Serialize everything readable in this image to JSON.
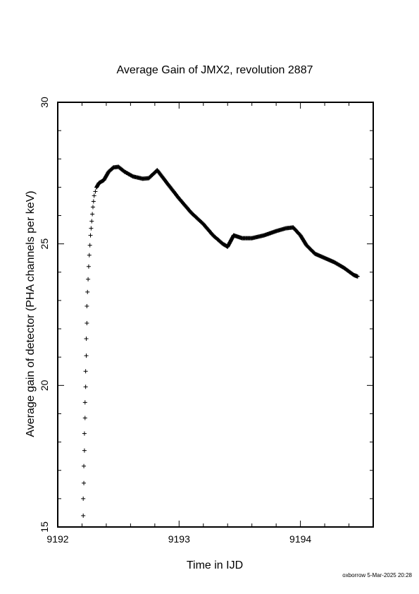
{
  "chart_data": {
    "type": "scatter",
    "title": "Average Gain of JMX2, revolution 2887",
    "xlabel": "Time in IJD",
    "ylabel": "Average gain of detector (PHA channels per keV)",
    "xlim": [
      9192,
      9194.6
    ],
    "ylim": [
      15,
      30
    ],
    "x_ticks": [
      9192,
      9193,
      9194
    ],
    "x_tick_labels": [
      "9192",
      "9193",
      "9194"
    ],
    "y_ticks": [
      15,
      20,
      25,
      30
    ],
    "y_tick_labels": [
      "15",
      "20",
      "25",
      "30"
    ],
    "grid": false,
    "marker": "+",
    "series": [
      {
        "points": [
          [
            9192.21,
            15.4
          ],
          [
            9192.21,
            16.0
          ],
          [
            9192.215,
            16.55
          ],
          [
            9192.215,
            17.15
          ],
          [
            9192.22,
            17.7
          ],
          [
            9192.22,
            18.3
          ],
          [
            9192.225,
            18.85
          ],
          [
            9192.225,
            19.4
          ],
          [
            9192.23,
            19.95
          ],
          [
            9192.23,
            20.5
          ],
          [
            9192.235,
            21.05
          ],
          [
            9192.235,
            21.65
          ],
          [
            9192.24,
            22.2
          ],
          [
            9192.24,
            22.8
          ],
          [
            9192.245,
            23.3
          ],
          [
            9192.25,
            23.75
          ],
          [
            9192.255,
            24.2
          ],
          [
            9192.26,
            24.6
          ],
          [
            9192.265,
            24.95
          ],
          [
            9192.27,
            25.3
          ],
          [
            9192.275,
            25.55
          ],
          [
            9192.28,
            25.8
          ],
          [
            9192.285,
            26.05
          ],
          [
            9192.29,
            26.3
          ],
          [
            9192.295,
            26.5
          ],
          [
            9192.3,
            26.7
          ],
          [
            9192.31,
            26.85
          ],
          [
            9192.32,
            27.0
          ],
          [
            9192.34,
            27.15
          ],
          [
            9192.38,
            27.25
          ],
          [
            9192.42,
            27.55
          ],
          [
            9192.46,
            27.7
          ],
          [
            9192.5,
            27.72
          ],
          [
            9192.55,
            27.55
          ],
          [
            9192.62,
            27.38
          ],
          [
            9192.7,
            27.3
          ],
          [
            9192.75,
            27.32
          ],
          [
            9192.82,
            27.6
          ],
          [
            9192.9,
            27.15
          ],
          [
            9193.0,
            26.6
          ],
          [
            9193.1,
            26.1
          ],
          [
            9193.2,
            25.7
          ],
          [
            9193.28,
            25.3
          ],
          [
            9193.36,
            25.0
          ],
          [
            9193.4,
            24.9
          ],
          [
            9193.45,
            25.3
          ],
          [
            9193.52,
            25.2
          ],
          [
            9193.6,
            25.2
          ],
          [
            9193.7,
            25.3
          ],
          [
            9193.8,
            25.45
          ],
          [
            9193.88,
            25.55
          ],
          [
            9193.94,
            25.58
          ],
          [
            9194.0,
            25.3
          ],
          [
            9194.05,
            24.95
          ],
          [
            9194.12,
            24.65
          ],
          [
            9194.2,
            24.5
          ],
          [
            9194.28,
            24.35
          ],
          [
            9194.36,
            24.15
          ],
          [
            9194.44,
            23.9
          ],
          [
            9194.47,
            23.85
          ]
        ]
      }
    ]
  },
  "footer": {
    "stamp": "oxborrow  5-Mar-2025 20:28"
  }
}
